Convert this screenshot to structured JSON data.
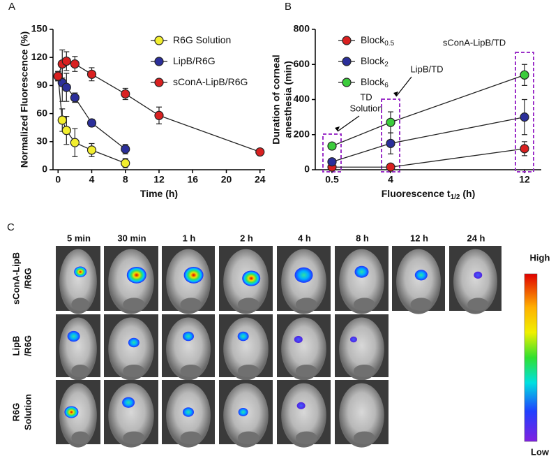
{
  "chart_data": [
    {
      "type": "line",
      "panel_label": "A",
      "xlabel": "Time (h)",
      "ylabel": "Normalized Fluorescence (%)",
      "xlim": [
        -0.6,
        24.6
      ],
      "xticks": [
        0,
        4,
        8,
        12,
        16,
        20,
        24
      ],
      "ylim": [
        0,
        150
      ],
      "yticks": [
        0,
        30,
        60,
        90,
        120,
        150
      ],
      "series": [
        {
          "name": "R6G Solution",
          "color": "#f2ee2e",
          "x": [
            0,
            0.5,
            1,
            2,
            4,
            8
          ],
          "values": [
            100,
            53,
            42,
            29,
            21,
            7
          ],
          "errors": [
            5,
            12,
            15,
            15,
            7,
            5
          ]
        },
        {
          "name": "LipB/R6G",
          "color": "#2b2f9a",
          "x": [
            0,
            0.5,
            1,
            2,
            4,
            8
          ],
          "values": [
            100,
            93,
            88,
            77,
            50,
            22
          ],
          "errors": [
            5,
            20,
            15,
            5,
            4,
            5
          ]
        },
        {
          "name": "sConA-LipB/R6G",
          "color": "#d92020",
          "x": [
            0,
            0.5,
            1,
            2,
            4,
            8,
            12,
            24
          ],
          "values": [
            100,
            113,
            116,
            113,
            102,
            81,
            58,
            19
          ],
          "errors": [
            5,
            15,
            10,
            8,
            7,
            6,
            9,
            3
          ]
        }
      ]
    },
    {
      "type": "line",
      "panel_label": "B",
      "xlabel": "Fluorescence t",
      "xlabel_sub": "1/2",
      "xlabel_end": " (h)",
      "ylabel": [
        "Duration of corneal",
        "anesthesia (min)"
      ],
      "x": [
        0.5,
        4,
        12
      ],
      "xlim": [
        -0.5,
        13
      ],
      "xticks": [
        0.5,
        4,
        12
      ],
      "ylim": [
        0,
        800
      ],
      "yticks": [
        0,
        200,
        400,
        600,
        800
      ],
      "series": [
        {
          "name": "Block",
          "subscript": "0.5",
          "color": "#d92020",
          "values": [
            15,
            15,
            120
          ],
          "errors": [
            5,
            10,
            40
          ]
        },
        {
          "name": "Block",
          "subscript": "2",
          "color": "#2b2f9a",
          "values": [
            45,
            150,
            300
          ],
          "errors": [
            10,
            60,
            100
          ]
        },
        {
          "name": "Block",
          "subscript": "6",
          "color": "#3ccc3c",
          "values": [
            135,
            270,
            540
          ],
          "errors": [
            15,
            60,
            60
          ]
        }
      ],
      "annotations": [
        {
          "text": [
            "TD",
            "Solution"
          ],
          "x": 0.5
        },
        {
          "text": [
            "LipB/TD"
          ],
          "x": 4
        },
        {
          "text": [
            "sConA-LipB/TD"
          ],
          "x": 12
        }
      ]
    }
  ],
  "panel_c": {
    "panel_label": "C",
    "columns": [
      "5 min",
      "30 min",
      "1 h",
      "2 h",
      "4 h",
      "8 h",
      "12 h",
      "24 h"
    ],
    "rows": [
      {
        "label": [
          "sConA-LipB",
          "/R6G"
        ],
        "images": 8
      },
      {
        "label": [
          "LipB",
          "/R6G"
        ],
        "images": 6
      },
      {
        "label": [
          "R6G",
          "Solution"
        ],
        "images": 6
      }
    ],
    "colorbar": {
      "high": "High",
      "low": "Low"
    }
  }
}
